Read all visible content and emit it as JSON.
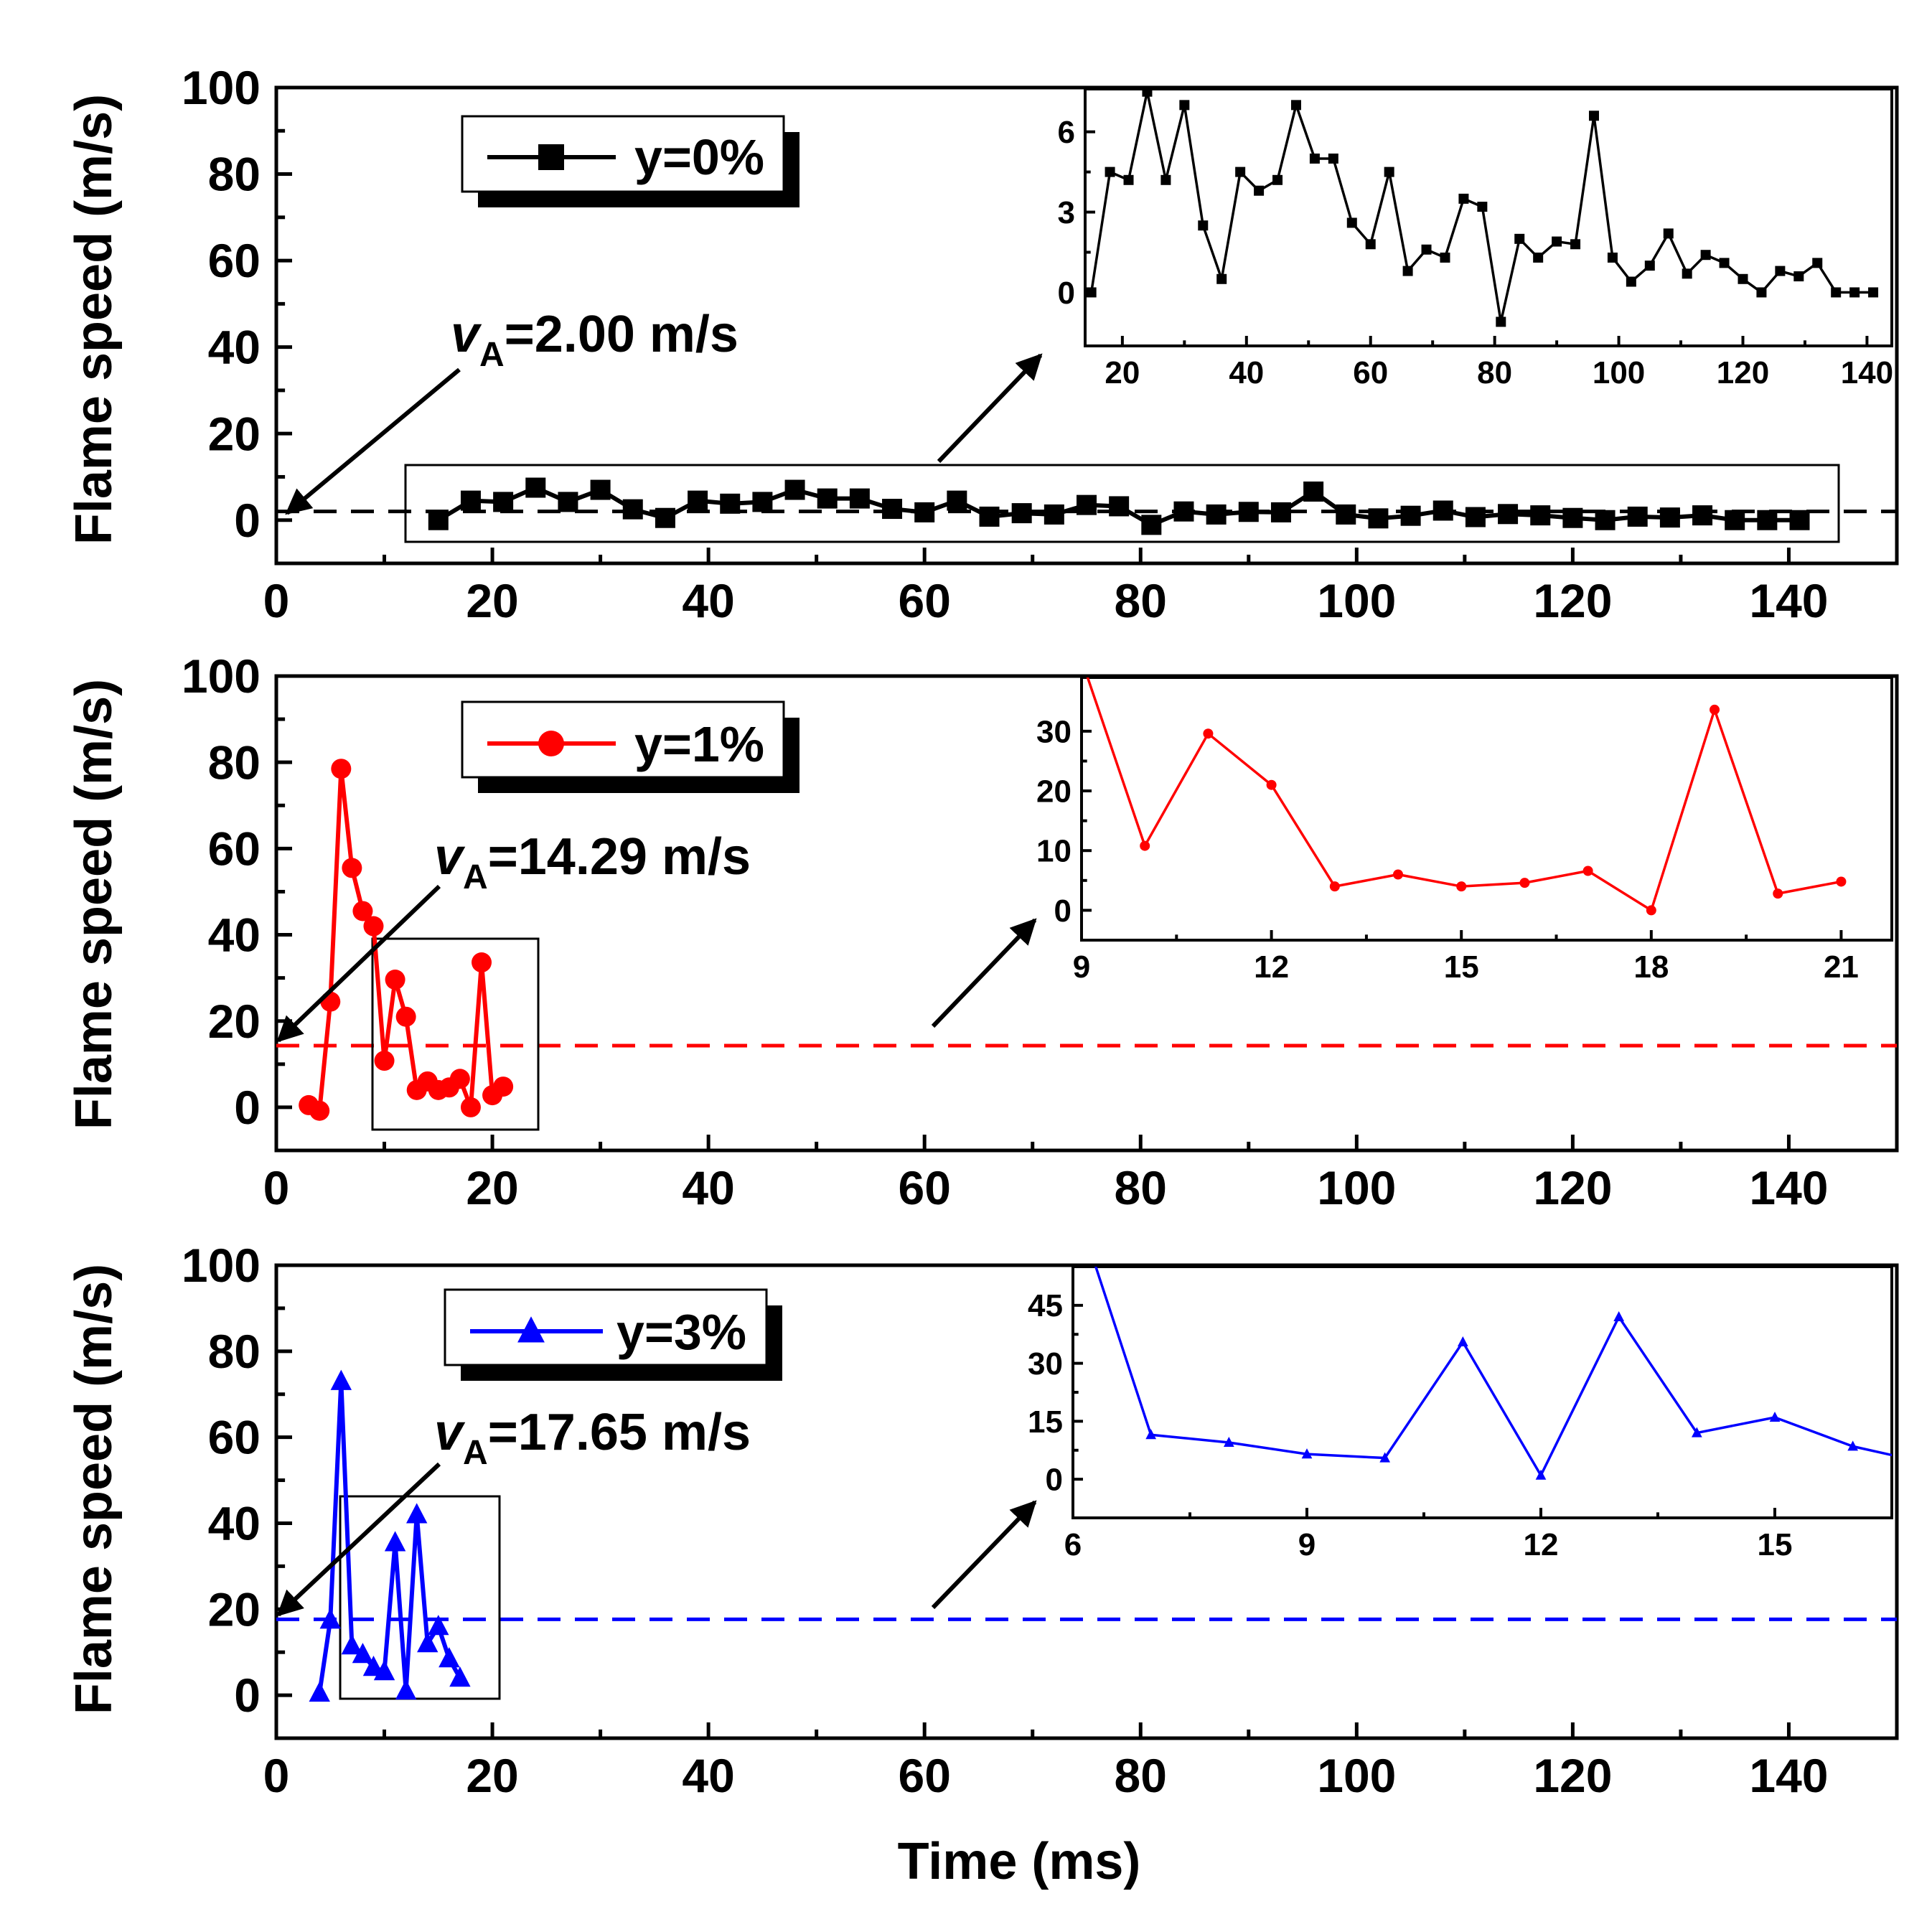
{
  "figure": {
    "xlabel": "Time (ms)",
    "ylabel": "Flame speed (m/s)",
    "axis_color": "#000000"
  },
  "chart_data": [
    {
      "type": "line",
      "id": "y0",
      "series_name": "y=0%",
      "color": "#000000",
      "marker": "square",
      "xlim": [
        0,
        150
      ],
      "ylim": [
        -10,
        100
      ],
      "xticks": [
        0,
        20,
        40,
        60,
        80,
        100,
        120,
        140
      ],
      "yticks": [
        0,
        20,
        40,
        60,
        80,
        100
      ],
      "reference_speed": 2.0,
      "annotation": {
        "symbol": "v",
        "subscript": "A",
        "rest": "=2.00 m/s"
      },
      "x": [
        15,
        18,
        21,
        24,
        27,
        30,
        33,
        36,
        39,
        42,
        45,
        48,
        51,
        54,
        57,
        60,
        63,
        66,
        69,
        72,
        75,
        78,
        81,
        84,
        87,
        90,
        93,
        96,
        99,
        102,
        105,
        108,
        111,
        114,
        117,
        120,
        123,
        126,
        129,
        132,
        135,
        138,
        141
      ],
      "y": [
        0,
        4.5,
        4.2,
        7.5,
        4.2,
        7,
        2.5,
        0.5,
        4.5,
        3.8,
        4.2,
        7,
        5,
        5,
        2.6,
        1.8,
        4.5,
        0.8,
        1.6,
        1.3,
        3.5,
        3.2,
        -1.1,
        2,
        1.3,
        1.9,
        1.8,
        6.6,
        1.3,
        0.4,
        1,
        2.2,
        0.7,
        1.4,
        1.1,
        0.5,
        0,
        0.8,
        0.6,
        1.1,
        0,
        0,
        0
      ],
      "inset": {
        "xlim": [
          14,
          144
        ],
        "ylim": [
          -2,
          7.6
        ],
        "xticks": [
          20,
          40,
          60,
          80,
          100,
          120,
          140
        ],
        "yticks": [
          0,
          3,
          6
        ]
      }
    },
    {
      "type": "line",
      "id": "y1",
      "series_name": "y=1%",
      "color": "#ff0000",
      "marker": "circle",
      "xlim": [
        0,
        150
      ],
      "ylim": [
        -10,
        100
      ],
      "xticks": [
        0,
        20,
        40,
        60,
        80,
        100,
        120,
        140
      ],
      "yticks": [
        0,
        20,
        40,
        60,
        80,
        100
      ],
      "reference_speed": 14.29,
      "annotation": {
        "symbol": "v",
        "subscript": "A",
        "rest": "=14.29 m/s"
      },
      "x": [
        3,
        4,
        5,
        6,
        7,
        8,
        9,
        10,
        11,
        12,
        13,
        14,
        15,
        16,
        17,
        18,
        19,
        20,
        21
      ],
      "y": [
        0.5,
        -0.8,
        24.5,
        78.5,
        55.5,
        45.5,
        42,
        10.8,
        29.6,
        21,
        4,
        6,
        4,
        4.6,
        6.6,
        0,
        33.6,
        2.8,
        4.8
      ],
      "inset": {
        "xlim": [
          9,
          21.8
        ],
        "ylim": [
          -5,
          39
        ],
        "xticks": [
          9,
          12,
          15,
          18,
          21
        ],
        "yticks": [
          0,
          10,
          20,
          30
        ]
      }
    },
    {
      "type": "line",
      "id": "y3",
      "series_name": "y=3%",
      "color": "#0000ff",
      "marker": "triangle",
      "xlim": [
        0,
        150
      ],
      "ylim": [
        -10,
        100
      ],
      "xticks": [
        0,
        20,
        40,
        60,
        80,
        100,
        120,
        140
      ],
      "yticks": [
        0,
        20,
        40,
        60,
        80,
        100
      ],
      "reference_speed": 17.65,
      "annotation": {
        "symbol": "v",
        "subscript": "A",
        "rest": "=17.65 m/s"
      },
      "x": [
        4,
        5,
        6,
        7,
        8,
        9,
        10,
        11,
        12,
        13,
        14,
        15,
        16,
        17
      ],
      "y": [
        0.5,
        17.5,
        73,
        11.5,
        9.5,
        6.5,
        5.5,
        35.5,
        1,
        42,
        12,
        16,
        8.5,
        4
      ],
      "inset": {
        "xlim": [
          6,
          16.5
        ],
        "ylim": [
          -10,
          55
        ],
        "xticks": [
          6,
          9,
          12,
          15
        ],
        "yticks": [
          0,
          15,
          30,
          45
        ]
      }
    }
  ]
}
